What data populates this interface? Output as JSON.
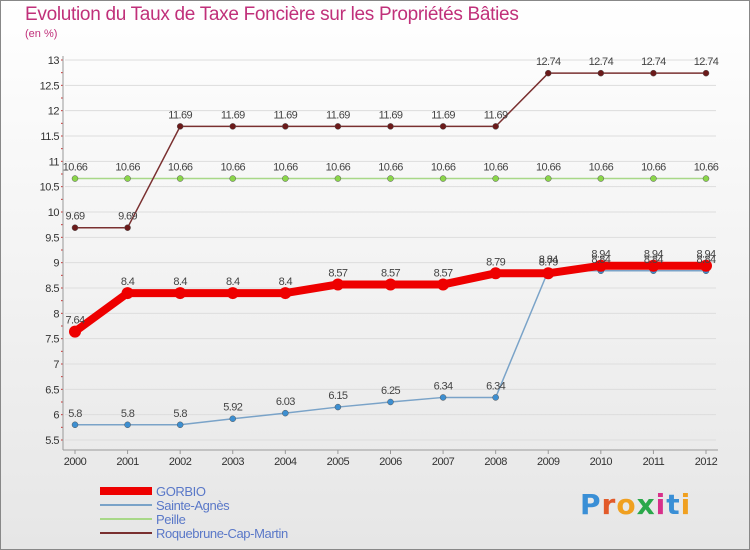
{
  "title": "Evolution du Taux de Taxe Foncière sur les Propriétés Bâties",
  "unit": "(en %)",
  "logo": "Proxiti",
  "colors": {
    "title": "#c0307a",
    "axis_text": "#333333",
    "grid": "#dddddd",
    "label_text": "#444444",
    "legend_text": "#5a78c8"
  },
  "chart_data": {
    "type": "line",
    "title": "Evolution du Taux de Taxe Foncière sur les Propriétés Bâties",
    "xlabel": "",
    "ylabel": "(en %)",
    "ylim": [
      5.5,
      13
    ],
    "y_ticks": [
      5.5,
      6,
      6.5,
      7,
      7.5,
      8,
      8.5,
      9,
      9.5,
      10,
      10.5,
      11,
      11.5,
      12,
      12.5,
      13
    ],
    "x": [
      "2000",
      "2001",
      "2002",
      "2003",
      "2004",
      "2005",
      "2006",
      "2007",
      "2008",
      "2009",
      "2010",
      "2011",
      "2012"
    ],
    "grid": true,
    "legend": "bottom-left",
    "series": [
      {
        "name": "GORBIO",
        "color": "#ee0000",
        "marker": "#ee0000",
        "width": 8,
        "values": [
          7.64,
          8.4,
          8.4,
          8.4,
          8.4,
          8.57,
          8.57,
          8.57,
          8.79,
          8.79,
          8.94,
          8.94,
          8.94
        ],
        "labels": [
          "7.64",
          "8.4",
          "8.4",
          "8.4",
          "8.4",
          "8.57",
          "8.57",
          "8.57",
          "8.79",
          "8.79",
          "8.94",
          "8.94",
          "8.94"
        ]
      },
      {
        "name": "Sainte-Agnès",
        "color": "#7aa3c8",
        "marker": "#3d8fd1",
        "width": 1.5,
        "values": [
          5.8,
          5.8,
          5.8,
          5.92,
          6.03,
          6.15,
          6.25,
          6.34,
          6.34,
          8.84,
          8.84,
          8.84,
          8.84
        ],
        "labels": [
          "5.8",
          "5.8",
          "5.8",
          "5.92",
          "6.03",
          "6.15",
          "6.25",
          "6.34",
          "6.34",
          "8.84",
          "8.84",
          "8.84",
          "8.84"
        ]
      },
      {
        "name": "Peille",
        "color": "#a8d888",
        "marker": "#8bd64a",
        "width": 1.5,
        "values": [
          10.66,
          10.66,
          10.66,
          10.66,
          10.66,
          10.66,
          10.66,
          10.66,
          10.66,
          10.66,
          10.66,
          10.66,
          10.66
        ],
        "labels": [
          "10.66",
          "10.66",
          "10.66",
          "10.66",
          "10.66",
          "10.66",
          "10.66",
          "10.66",
          "10.66",
          "10.66",
          "10.66",
          "10.66",
          "10.66"
        ]
      },
      {
        "name": "Roquebrune-Cap-Martin",
        "color": "#7a3030",
        "marker": "#6b1a1a",
        "width": 1.5,
        "values": [
          9.69,
          9.69,
          11.69,
          11.69,
          11.69,
          11.69,
          11.69,
          11.69,
          11.69,
          12.74,
          12.74,
          12.74,
          12.74
        ],
        "labels": [
          "9.69",
          "9.69",
          "11.69",
          "11.69",
          "11.69",
          "11.69",
          "11.69",
          "11.69",
          "11.69",
          "12.74",
          "12.74",
          "12.74",
          "12.74"
        ]
      }
    ]
  }
}
